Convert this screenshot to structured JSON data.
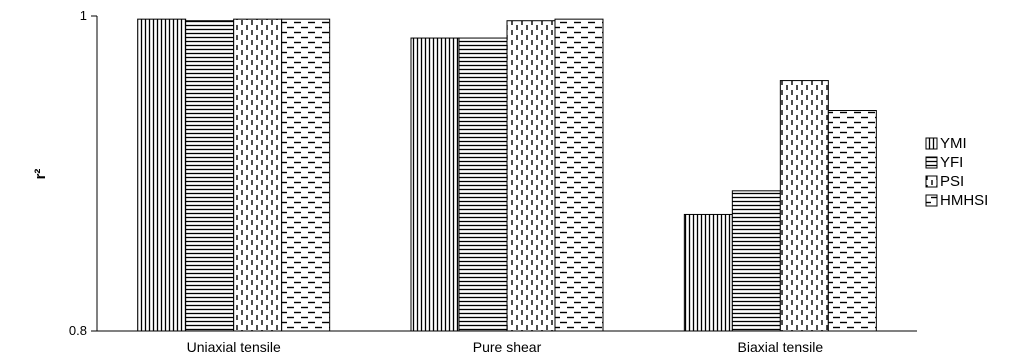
{
  "chart_data": {
    "type": "bar",
    "categories": [
      "Uniaxial tensile",
      "Pure shear",
      "Biaxial tensile"
    ],
    "series": [
      {
        "name": "YMI",
        "values": [
          0.998,
          0.986,
          0.874
        ],
        "pattern": "vertical-lines"
      },
      {
        "name": "YFI",
        "values": [
          0.997,
          0.986,
          0.889
        ],
        "pattern": "horizontal-lines"
      },
      {
        "name": "PSI",
        "values": [
          0.998,
          0.997,
          0.959
        ],
        "pattern": "dashed-vertical"
      },
      {
        "name": "HMHSI",
        "values": [
          0.998,
          0.998,
          0.94
        ],
        "pattern": "dashed-horizontal"
      }
    ],
    "ylim": [
      0.8,
      1.0
    ],
    "yticks": [
      "0.8",
      "1"
    ],
    "ylabel": "r²",
    "legend_position": "right",
    "grid": false,
    "colors": {
      "stroke": "#000000",
      "fill": "#ffffff"
    }
  }
}
